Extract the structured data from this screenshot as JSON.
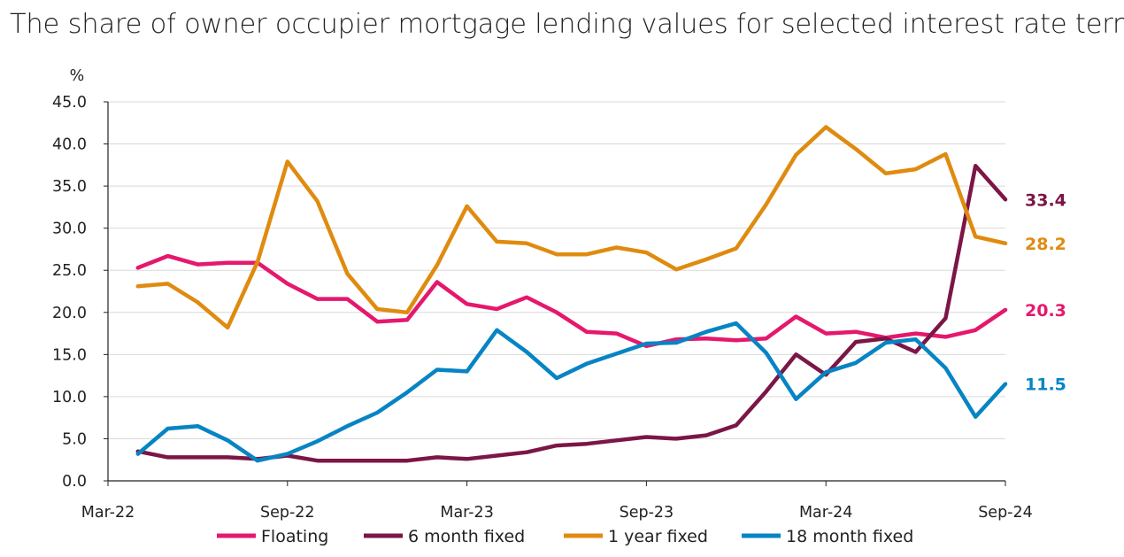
{
  "chart_data": {
    "type": "line",
    "title": "The share of owner occupier mortgage lending values for selected interest rate terms",
    "ylabel": "%",
    "ylim": [
      0,
      45
    ],
    "yticks": [
      "0.0",
      "5.0",
      "10.0",
      "15.0",
      "20.0",
      "25.0",
      "30.0",
      "35.0",
      "40.0",
      "45.0"
    ],
    "xticks": [
      "Mar-22",
      "Sep-22",
      "Mar-23",
      "Sep-23",
      "Mar-24",
      "Sep-24"
    ],
    "x": [
      "Apr-22",
      "May-22",
      "Jun-22",
      "Jul-22",
      "Aug-22",
      "Sep-22",
      "Oct-22",
      "Nov-22",
      "Dec-22",
      "Jan-23",
      "Feb-23",
      "Mar-23",
      "Apr-23",
      "May-23",
      "Jun-23",
      "Jul-23",
      "Aug-23",
      "Sep-23",
      "Oct-23",
      "Nov-23",
      "Dec-23",
      "Jan-24",
      "Feb-24",
      "Mar-24",
      "Apr-24",
      "May-24",
      "Jun-24",
      "Jul-24",
      "Aug-24",
      "Sep-24"
    ],
    "grid": true,
    "legend": "bottom",
    "series": [
      {
        "name": "Floating",
        "color": "#e5186d",
        "end_label": "20.3",
        "values": [
          25.3,
          26.7,
          25.7,
          25.9,
          25.9,
          23.4,
          21.6,
          21.6,
          18.9,
          19.1,
          23.6,
          21.0,
          20.4,
          21.8,
          20.0,
          17.7,
          17.5,
          16.0,
          16.8,
          16.9,
          16.7,
          16.9,
          19.5,
          17.5,
          17.7,
          17.0,
          17.5,
          17.1,
          17.9,
          20.3
        ]
      },
      {
        "name": "6 month fixed",
        "color": "#7b1646",
        "end_label": "33.4",
        "values": [
          3.5,
          2.8,
          2.8,
          2.8,
          2.6,
          3.0,
          2.4,
          2.4,
          2.4,
          2.4,
          2.8,
          2.6,
          3.0,
          3.4,
          4.2,
          4.4,
          4.8,
          5.2,
          5.0,
          5.4,
          6.6,
          10.6,
          15.0,
          12.6,
          16.5,
          16.9,
          15.3,
          19.3,
          37.4,
          33.4
        ]
      },
      {
        "name": "1 year fixed",
        "color": "#df8b10",
        "end_label": "28.2",
        "values": [
          23.1,
          23.4,
          21.2,
          18.2,
          26.0,
          37.9,
          33.2,
          24.6,
          20.4,
          20.0,
          25.6,
          32.6,
          28.4,
          28.2,
          26.9,
          26.9,
          27.7,
          27.1,
          25.1,
          26.3,
          27.6,
          32.8,
          38.7,
          42.0,
          39.4,
          36.5,
          37.0,
          38.8,
          29.0,
          28.2
        ]
      },
      {
        "name": "18 month fixed",
        "color": "#0784c4",
        "end_label": "11.5",
        "values": [
          3.2,
          6.2,
          6.5,
          4.8,
          2.4,
          3.2,
          4.7,
          6.5,
          8.1,
          10.5,
          13.2,
          13.0,
          17.9,
          15.3,
          12.2,
          13.9,
          15.1,
          16.3,
          16.4,
          17.7,
          18.7,
          15.2,
          9.7,
          12.9,
          14.0,
          16.4,
          16.8,
          13.4,
          7.6,
          11.5
        ]
      }
    ]
  }
}
